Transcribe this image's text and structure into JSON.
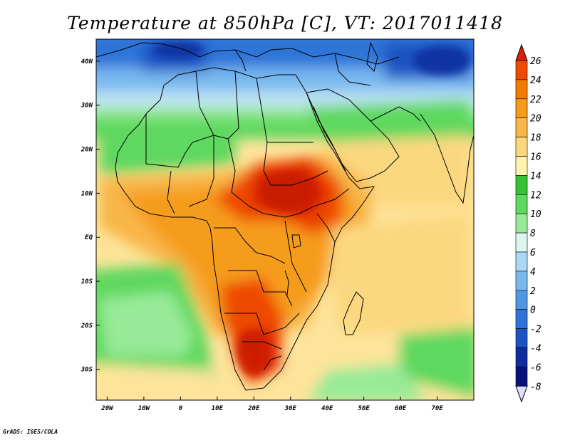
{
  "title": "Temperature at 850hPa [C], VT: 2017011418",
  "credit": "GrADS: IGES/COLA",
  "map": {
    "lon_range": [
      -23,
      80
    ],
    "lat_range": [
      -37,
      45
    ],
    "lon_ticks": [
      {
        "value": -20,
        "label": "20W"
      },
      {
        "value": -10,
        "label": "10W"
      },
      {
        "value": 0,
        "label": "0"
      },
      {
        "value": 10,
        "label": "10E"
      },
      {
        "value": 20,
        "label": "20E"
      },
      {
        "value": 30,
        "label": "30E"
      },
      {
        "value": 40,
        "label": "40E"
      },
      {
        "value": 50,
        "label": "50E"
      },
      {
        "value": 60,
        "label": "60E"
      },
      {
        "value": 70,
        "label": "70E"
      }
    ],
    "lat_ticks": [
      {
        "value": 40,
        "label": "40N"
      },
      {
        "value": 30,
        "label": "30N"
      },
      {
        "value": 20,
        "label": "20N"
      },
      {
        "value": 10,
        "label": "10N"
      },
      {
        "value": 0,
        "label": "EQ"
      },
      {
        "value": -10,
        "label": "10S"
      },
      {
        "value": -20,
        "label": "20S"
      },
      {
        "value": -30,
        "label": "30S"
      }
    ]
  },
  "colorbar": {
    "levels": [
      "26",
      "24",
      "22",
      "20",
      "18",
      "16",
      "14",
      "12",
      "10",
      "8",
      "6",
      "4",
      "2",
      "0",
      "-2",
      "-4",
      "-6",
      "-8"
    ],
    "colors": [
      "#d92000",
      "#ee4a00",
      "#f27c00",
      "#f59c1a",
      "#f8b64a",
      "#fbd880",
      "#fff3b0",
      "#33c233",
      "#5ed85e",
      "#98ea98",
      "#dcf6f0",
      "#aad8f5",
      "#78b8ef",
      "#4e97e4",
      "#2e74d8",
      "#1d52c2",
      "#0f2e9e",
      "#08137a",
      "#dedcff"
    ]
  },
  "colors": {
    "hot": "#d42000",
    "warm": "#f5a02a",
    "mild": "#fde49a",
    "green": "#4ccd4c",
    "cool": "#78b8ef",
    "cold": "#1d52c2"
  }
}
